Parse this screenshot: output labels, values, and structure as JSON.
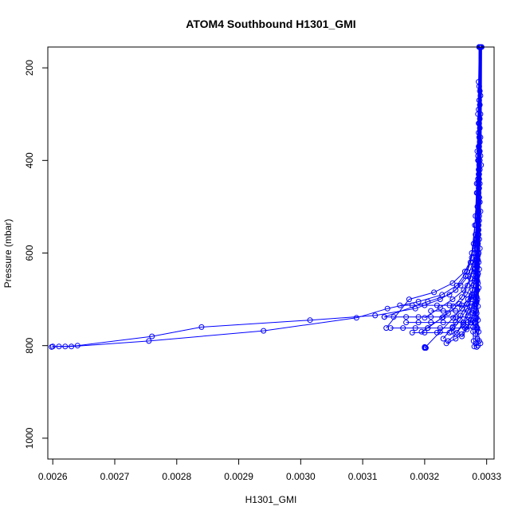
{
  "chart_data": {
    "type": "line",
    "title": "ATOM4 Southbound H1301_GMI",
    "xlabel": "H1301_GMI",
    "ylabel": "Pressure (mbar)",
    "xlim": [
      0.002592,
      0.003312
    ],
    "ylim": [
      1045,
      155
    ],
    "y_reversed": true,
    "grid": false,
    "legend": "none",
    "xticks": [
      0.0026,
      0.0027,
      0.0028,
      0.0029,
      0.003,
      0.0031,
      0.0032,
      0.0033
    ],
    "xtick_labels": [
      "0.0026",
      "0.0027",
      "0.0028",
      "0.0029",
      "0.0030",
      "0.0031",
      "0.0032",
      "0.0033"
    ],
    "yticks": [
      200,
      400,
      600,
      800,
      1000
    ],
    "ytick_labels": [
      "200",
      "400",
      "600",
      "800",
      "1000"
    ],
    "series_color": "#0000FF",
    "marker": "open-circle",
    "series": [
      {
        "x": [
          0.003288,
          0.003287,
          0.003286,
          0.003285,
          0.003284,
          0.003282,
          0.003279,
          0.003274,
          0.003266,
          0.00325,
          0.003225,
          0.003185,
          0.00312,
          0.003015,
          0.00284,
          0.00276,
          0.00264,
          0.00262,
          0.0026
        ],
        "y": [
          155,
          230,
          300,
          380,
          450,
          520,
          580,
          620,
          650,
          680,
          700,
          720,
          735,
          745,
          760,
          780,
          800,
          802,
          802
        ]
      },
      {
        "x": [
          0.003289,
          0.003288,
          0.003287,
          0.003286,
          0.003284,
          0.003281,
          0.003276,
          0.003268,
          0.003252,
          0.003228,
          0.00319,
          0.00314,
          0.00309,
          0.00294,
          0.002755,
          0.00263,
          0.00261,
          0.002598
        ],
        "y": [
          155,
          240,
          320,
          400,
          470,
          540,
          600,
          640,
          670,
          690,
          705,
          720,
          740,
          768,
          790,
          802,
          802,
          803
        ]
      },
      {
        "x": [
          0.00329,
          0.003289,
          0.003288,
          0.003287,
          0.003285,
          0.003282,
          0.003276,
          0.003265,
          0.003245,
          0.003215,
          0.003175,
          0.003138
        ],
        "y": [
          155,
          250,
          350,
          430,
          500,
          560,
          610,
          640,
          665,
          685,
          700,
          762
        ]
      },
      {
        "x": [
          0.003291,
          0.00329,
          0.003289,
          0.003288,
          0.003286,
          0.003283,
          0.003278,
          0.00327,
          0.003258,
          0.00324,
          0.003205,
          0.003135
        ],
        "y": [
          155,
          260,
          360,
          440,
          510,
          570,
          620,
          650,
          670,
          690,
          705,
          738
        ]
      },
      {
        "x": [
          0.003289,
          0.003288,
          0.003287,
          0.003286,
          0.003285,
          0.003283,
          0.00328,
          0.003274,
          0.003263,
          0.003245,
          0.003225,
          0.0032
        ],
        "y": [
          155,
          270,
          370,
          450,
          520,
          580,
          625,
          655,
          680,
          700,
          718,
          740
        ]
      },
      {
        "x": [
          0.00329,
          0.003289,
          0.003288,
          0.003287,
          0.003286,
          0.003284,
          0.003281,
          0.003276,
          0.003268,
          0.003256,
          0.003238,
          0.003205
        ],
        "y": [
          155,
          280,
          380,
          460,
          530,
          590,
          635,
          665,
          690,
          710,
          730,
          762
        ]
      },
      {
        "x": [
          0.003288,
          0.003287,
          0.003286,
          0.003285,
          0.003283,
          0.00328,
          0.003276,
          0.003269,
          0.00326,
          0.003246,
          0.003228,
          0.003195
        ],
        "y": [
          155,
          290,
          390,
          470,
          540,
          600,
          640,
          670,
          695,
          715,
          740,
          770
        ]
      },
      {
        "x": [
          0.003291,
          0.00329,
          0.003289,
          0.003288,
          0.003287,
          0.003285,
          0.003282,
          0.003277,
          0.00327,
          0.00326,
          0.003246,
          0.003225,
          0.0032
        ],
        "y": [
          155,
          300,
          400,
          480,
          550,
          610,
          650,
          680,
          700,
          720,
          740,
          770,
          805
        ]
      },
      {
        "x": [
          0.00329,
          0.003289,
          0.003288,
          0.003287,
          0.003286,
          0.003284,
          0.003281,
          0.003276,
          0.003268,
          0.003258,
          0.003245,
          0.00323
        ],
        "y": [
          155,
          310,
          410,
          490,
          560,
          615,
          655,
          690,
          710,
          735,
          760,
          785
        ]
      },
      {
        "x": [
          0.003289,
          0.003288,
          0.003287,
          0.003286,
          0.003285,
          0.003283,
          0.00328,
          0.003275,
          0.003268,
          0.003257,
          0.003243
        ],
        "y": [
          155,
          320,
          420,
          500,
          570,
          620,
          660,
          695,
          720,
          745,
          770
        ]
      },
      {
        "x": [
          0.00329,
          0.003289,
          0.003288,
          0.003287,
          0.003286,
          0.003285,
          0.003283,
          0.00328,
          0.003276,
          0.00327,
          0.003262,
          0.00325,
          0.003238
        ],
        "y": [
          155,
          330,
          430,
          510,
          580,
          630,
          665,
          695,
          715,
          735,
          755,
          775,
          790
        ]
      },
      {
        "x": [
          0.003288,
          0.003287,
          0.003286,
          0.003285,
          0.003284,
          0.003282,
          0.003279,
          0.003275,
          0.00327,
          0.003262,
          0.003252
        ],
        "y": [
          155,
          340,
          440,
          520,
          590,
          640,
          670,
          700,
          725,
          750,
          772
        ]
      },
      {
        "x": [
          0.003291,
          0.00329,
          0.003289,
          0.003288,
          0.003287,
          0.003286,
          0.003284,
          0.003282,
          0.003279,
          0.003274,
          0.003268,
          0.00326,
          0.00325,
          0.003235
        ],
        "y": [
          155,
          350,
          450,
          530,
          600,
          645,
          680,
          705,
          725,
          745,
          760,
          775,
          785,
          795
        ]
      },
      {
        "x": [
          0.00329,
          0.003289,
          0.003288,
          0.003287,
          0.003286,
          0.003285,
          0.003283,
          0.003281,
          0.003278,
          0.003274,
          0.003268,
          0.00326
        ],
        "y": [
          155,
          360,
          460,
          540,
          605,
          650,
          685,
          710,
          730,
          750,
          765,
          780
        ]
      },
      {
        "x": [
          0.003289,
          0.003288,
          0.003287,
          0.003286,
          0.003285,
          0.003284,
          0.003282,
          0.00328,
          0.003278,
          0.003278,
          0.003279,
          0.00328
        ],
        "y": [
          155,
          370,
          470,
          550,
          610,
          655,
          690,
          720,
          745,
          770,
          790,
          802
        ]
      },
      {
        "x": [
          0.00329,
          0.003289,
          0.003288,
          0.003287,
          0.003286,
          0.003285,
          0.003284,
          0.003283,
          0.003282,
          0.003282,
          0.003283,
          0.003284
        ],
        "y": [
          155,
          380,
          480,
          560,
          615,
          660,
          695,
          725,
          750,
          775,
          795,
          803
        ]
      },
      {
        "x": [
          0.003291,
          0.00329,
          0.003289,
          0.003288,
          0.003287,
          0.003286,
          0.003285,
          0.003284,
          0.003284,
          0.003285,
          0.003286
        ],
        "y": [
          155,
          390,
          490,
          570,
          620,
          665,
          700,
          730,
          760,
          785,
          800
        ]
      },
      {
        "x": [
          0.003288,
          0.003287,
          0.003286,
          0.003285,
          0.003284,
          0.003283,
          0.003283,
          0.003284,
          0.003285
        ],
        "y": [
          155,
          400,
          500,
          580,
          630,
          670,
          710,
          740,
          765
        ]
      },
      {
        "x": [
          0.003292,
          0.003291,
          0.00329,
          0.003289,
          0.003288,
          0.003287,
          0.003286,
          0.003286,
          0.003287,
          0.003288,
          0.00329
        ],
        "y": [
          155,
          410,
          510,
          590,
          635,
          675,
          715,
          745,
          770,
          790,
          795
        ]
      },
      {
        "x": [
          0.00329,
          0.003289,
          0.003288,
          0.003287,
          0.003286,
          0.003285,
          0.003284,
          0.003283,
          0.003282,
          0.00328,
          0.003278
        ],
        "y": [
          155,
          420,
          520,
          600,
          645,
          680,
          705,
          725,
          740,
          750,
          760
        ]
      },
      {
        "x": [
          0.003135,
          0.00315,
          0.00317,
          0.00319,
          0.00321,
          0.00323,
          0.00325,
          0.00327
        ],
        "y": [
          738,
          738,
          738,
          738,
          738,
          738,
          738,
          738
        ]
      },
      {
        "x": [
          0.003145,
          0.003165,
          0.003185,
          0.003205,
          0.003225,
          0.003245,
          0.003265,
          0.003285
        ],
        "y": [
          762,
          762,
          762,
          762,
          762,
          762,
          762,
          762
        ]
      },
      {
        "x": [
          0.00316,
          0.00318,
          0.0032,
          0.00322,
          0.00324,
          0.00326,
          0.00328
        ],
        "y": [
          713,
          713,
          713,
          713,
          713,
          713,
          713
        ]
      },
      {
        "x": [
          0.00317,
          0.00319,
          0.00321,
          0.00323,
          0.00325,
          0.00327
        ],
        "y": [
          750,
          750,
          750,
          750,
          750,
          750
        ]
      },
      {
        "x": [
          0.0032,
          0.003201,
          0.003202
        ],
        "y": [
          803,
          804,
          805
        ]
      },
      {
        "x": [
          0.00321,
          0.00323,
          0.00325,
          0.00327
        ],
        "y": [
          725,
          725,
          725,
          725
        ]
      },
      {
        "x": [
          0.00318,
          0.0032,
          0.00322,
          0.00324
        ],
        "y": [
          772,
          772,
          772,
          772
        ]
      }
    ]
  }
}
